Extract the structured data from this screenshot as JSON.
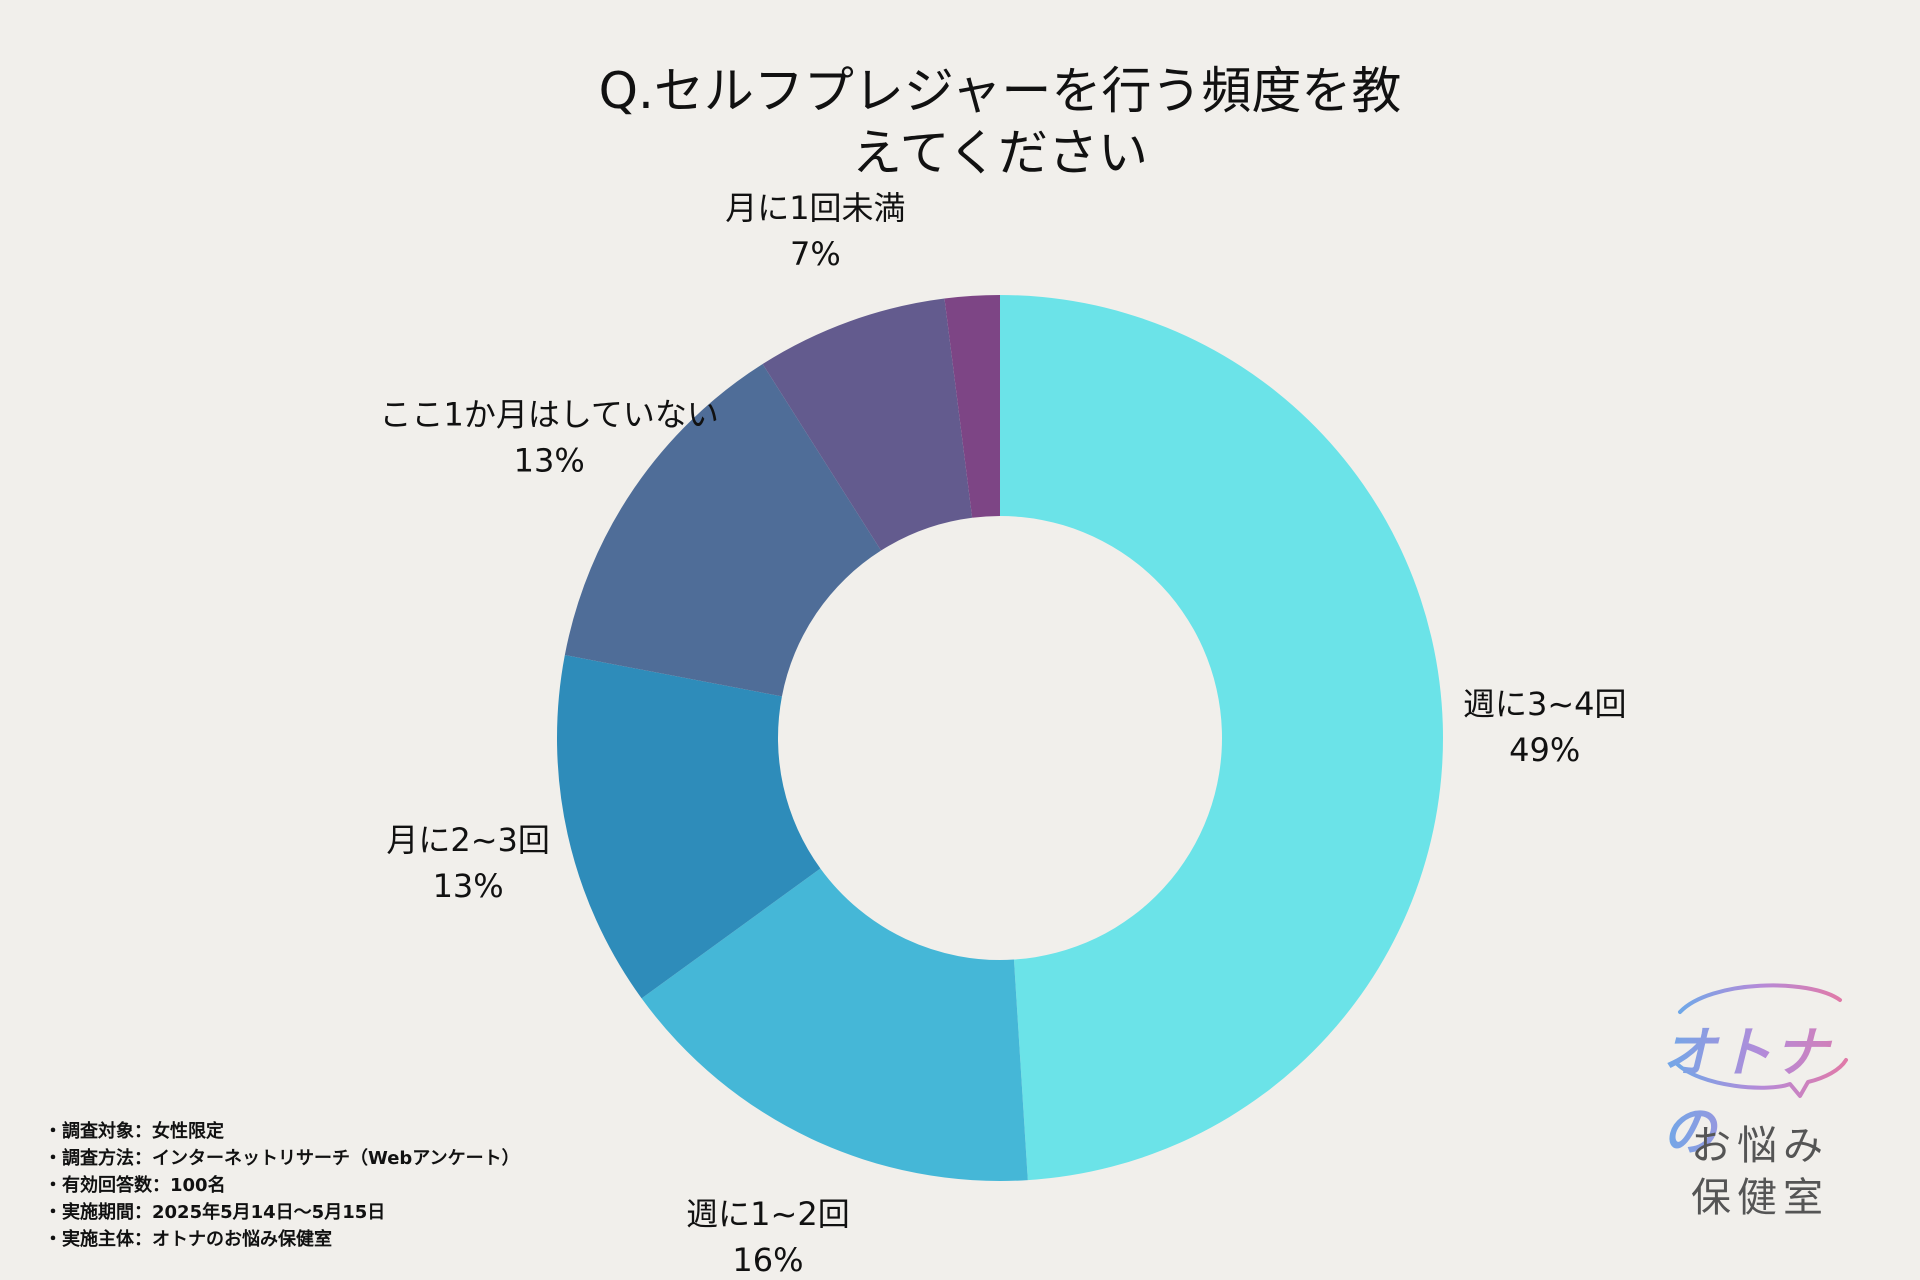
{
  "chart_data": {
    "type": "pie",
    "title_lines": [
      "Q.セルフプレジャーを行う頻度を教",
      "えてください"
    ],
    "slices": [
      {
        "label": "週に3~4回",
        "pct_label": "49%",
        "value": 49,
        "color": "#6be3e8"
      },
      {
        "label": "週に1~2回",
        "pct_label": "16%",
        "value": 16,
        "color": "#45b7d7"
      },
      {
        "label": "月に2~3回",
        "pct_label": "13%",
        "value": 13,
        "color": "#2e8cba"
      },
      {
        "label": "ここ1か月はしていない",
        "pct_label": "13%",
        "value": 13,
        "color": "#4f6d98"
      },
      {
        "label": "月に1回未満",
        "pct_label": "7%",
        "value": 7,
        "color": "#635b8e"
      },
      {
        "label": "",
        "pct_label": "",
        "value": 2,
        "color": "#7d4585"
      }
    ]
  },
  "notes": [
    "調査対象：女性限定",
    "調査方法：インターネットリサーチ（Webアンケート）",
    "有効回答数：100名",
    "実施期間：2025年5月14日〜5月15日",
    "実施主体：オトナのお悩み保健室"
  ],
  "logo": {
    "brand": "オトナの",
    "sub_line1": "お悩み",
    "sub_line2": "保健室"
  }
}
